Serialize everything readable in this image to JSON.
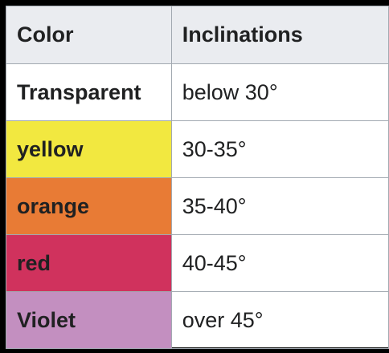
{
  "table": {
    "headers": [
      "Color",
      "Inclinations"
    ],
    "rows": [
      {
        "color": "Transparent",
        "inclination": "below 30°",
        "swatch": "#ffffff"
      },
      {
        "color": "yellow",
        "inclination": "30-35°",
        "swatch": "#f2e840"
      },
      {
        "color": "orange",
        "inclination": "35-40°",
        "swatch": "#e87b35"
      },
      {
        "color": "red",
        "inclination": "40-45°",
        "swatch": "#d0325d"
      },
      {
        "color": "Violet",
        "inclination": "over 45°",
        "swatch": "#c38fc0"
      }
    ]
  }
}
